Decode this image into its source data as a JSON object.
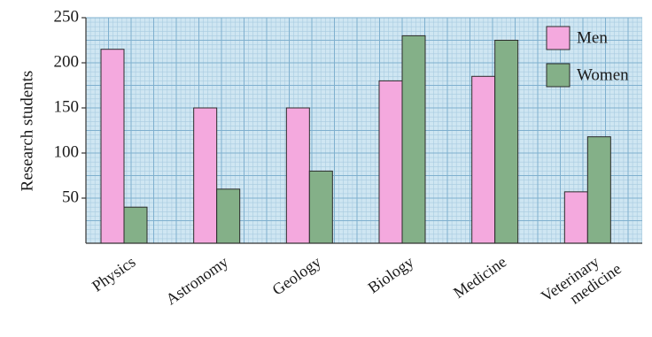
{
  "chart_data": {
    "type": "bar",
    "title": "",
    "ylabel": "Research students",
    "xlabel": "",
    "ylim": [
      0,
      250
    ],
    "yticks": [
      50,
      100,
      150,
      200,
      250
    ],
    "grid": true,
    "legend_position": "top-right",
    "categories": [
      "Physics",
      "Astronomy",
      "Geology",
      "Biology",
      "Medicine",
      "Veterinary medicine"
    ],
    "category_lines": [
      [
        "Physics"
      ],
      [
        "Astronomy"
      ],
      [
        "Geology"
      ],
      [
        "Biology"
      ],
      [
        "Medicine"
      ],
      [
        "Veterinary",
        "medicine"
      ]
    ],
    "series": [
      {
        "name": "Men",
        "color": "#f4a9de",
        "values": [
          215,
          150,
          150,
          180,
          185,
          57
        ]
      },
      {
        "name": "Women",
        "color": "#84b088",
        "values": [
          40,
          60,
          80,
          230,
          225,
          118
        ]
      }
    ],
    "colors": {
      "background": "#ffffff",
      "plot_background": "#cfe6f2",
      "grid_minor": "#a8cbe0",
      "grid_major": "#7fb0cf",
      "axis": "#333333"
    }
  }
}
